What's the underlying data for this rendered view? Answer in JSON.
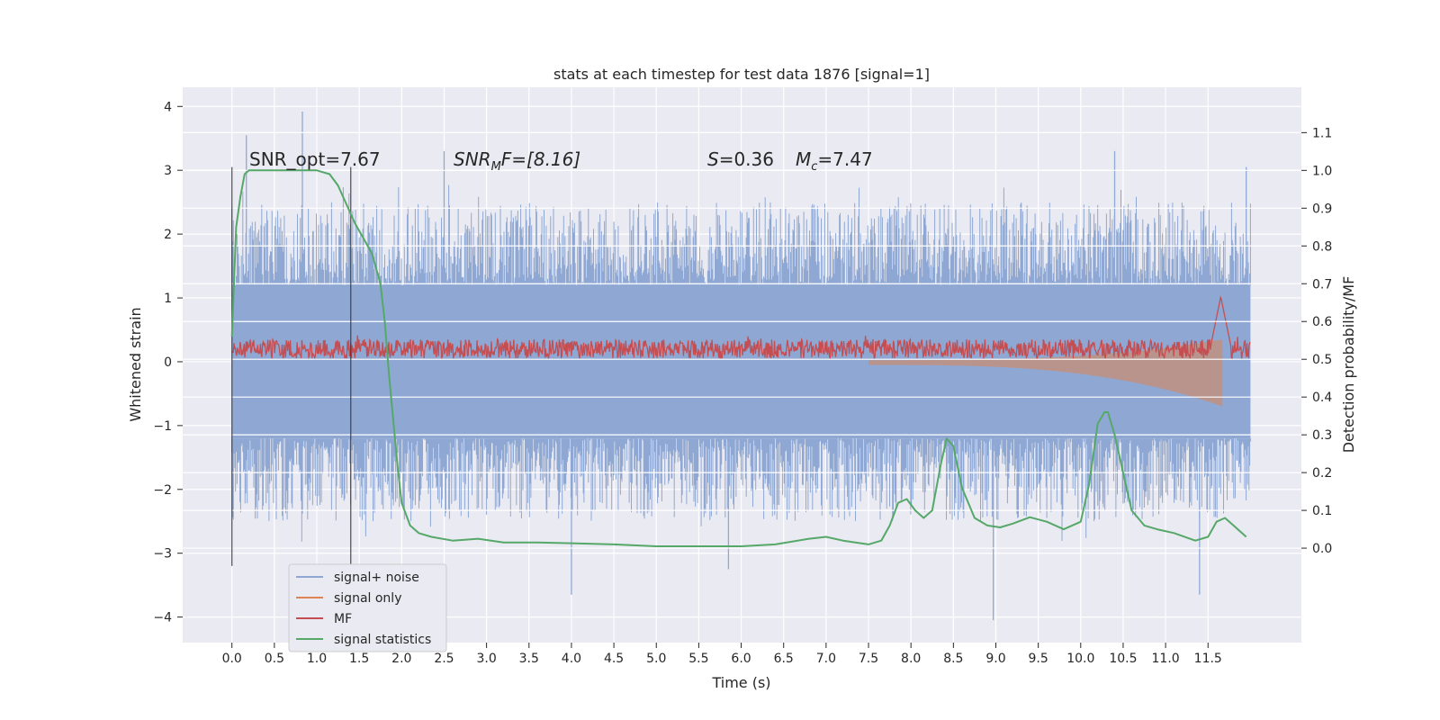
{
  "chart_data": {
    "type": "line",
    "title": "stats at each timestep for test data 1876 [signal=1]",
    "xlabel": "Time (s)",
    "ylabel": "Whitened strain",
    "ylabel_right": "Detection probability/MF",
    "xlim": [
      -0.58,
      12.6
    ],
    "ylim": [
      -4.4,
      4.3
    ],
    "ylim_right": [
      -0.25,
      1.22
    ],
    "x_ticks": [
      "0.0",
      "0.5",
      "1.0",
      "1.5",
      "2.0",
      "2.5",
      "3.0",
      "3.5",
      "4.0",
      "4.5",
      "5.0",
      "5.5",
      "6.0",
      "6.5",
      "7.0",
      "7.5",
      "8.0",
      "8.5",
      "9.0",
      "9.5",
      "10.0",
      "10.5",
      "11.0",
      "11.5"
    ],
    "y_ticks": [
      "4",
      "3",
      "2",
      "1",
      "0",
      "−1",
      "−2",
      "−3",
      "−4"
    ],
    "y_ticks_right": [
      "1.1",
      "1.0",
      "0.9",
      "0.8",
      "0.7",
      "0.6",
      "0.5",
      "0.4",
      "0.3",
      "0.2",
      "0.1",
      "0.0"
    ],
    "grid": true,
    "legend_position": "bottom-left",
    "vertical_lines": [
      0.0,
      1.4
    ],
    "annotations": {
      "snr_opt": "SNR_opt=7.67",
      "snr_mf_name": "SNR",
      "snr_mf_sub": "M",
      "snr_mf_rest": "F=[8.16]",
      "s_name": "S",
      "s_value": "=0.36",
      "mc_name": "M",
      "mc_sub": "c",
      "mc_value": "=7.47"
    },
    "series": [
      {
        "name": "signal+ noise",
        "color": "#8fa8d3",
        "axis": "left",
        "x_range": [
          0.0,
          12.0
        ],
        "core_band": 1.2,
        "typical_peak": 2.2,
        "outliers": [
          [
            0.17,
            3.55
          ],
          [
            0.83,
            3.92
          ],
          [
            4.0,
            -3.65
          ],
          [
            8.97,
            -4.05
          ],
          [
            10.4,
            3.3
          ],
          [
            11.4,
            -3.65
          ],
          [
            11.95,
            3.05
          ],
          [
            2.5,
            3.3
          ],
          [
            5.85,
            -3.25
          ]
        ]
      },
      {
        "name": "signal only",
        "color": "#dd8452",
        "axis": "left",
        "x_range": [
          7.5,
          11.67
        ],
        "amplitude_start": 0.05,
        "amplitude_end": 0.7
      },
      {
        "name": "MF",
        "color": "#c44e52",
        "axis": "left",
        "x_range": [
          0.0,
          12.0
        ],
        "baseline": 0.2,
        "spread": 0.15,
        "peak": {
          "x": 11.65,
          "y": 1.02
        }
      },
      {
        "name": "signal statistics",
        "color": "#55a868",
        "axis": "right",
        "x": [
          0.0,
          0.05,
          0.1,
          0.15,
          0.2,
          0.3,
          0.5,
          0.8,
          1.0,
          1.15,
          1.25,
          1.35,
          1.45,
          1.55,
          1.65,
          1.75,
          1.8,
          1.85,
          1.9,
          1.95,
          2.0,
          2.1,
          2.2,
          2.35,
          2.6,
          2.9,
          3.2,
          3.6,
          4.0,
          4.5,
          5.0,
          5.5,
          6.0,
          6.4,
          6.8,
          7.0,
          7.2,
          7.5,
          7.65,
          7.75,
          7.85,
          7.95,
          8.05,
          8.15,
          8.25,
          8.35,
          8.42,
          8.5,
          8.6,
          8.75,
          8.9,
          9.05,
          9.2,
          9.4,
          9.6,
          9.8,
          10.0,
          10.1,
          10.2,
          10.28,
          10.32,
          10.4,
          10.5,
          10.6,
          10.75,
          10.9,
          11.1,
          11.35,
          11.5,
          11.6,
          11.7,
          11.8,
          11.95
        ],
        "y": [
          0.56,
          0.85,
          0.93,
          0.99,
          1.0,
          1.0,
          1.0,
          1.0,
          1.0,
          0.99,
          0.96,
          0.91,
          0.86,
          0.82,
          0.78,
          0.7,
          0.6,
          0.46,
          0.34,
          0.22,
          0.12,
          0.06,
          0.04,
          0.03,
          0.02,
          0.025,
          0.015,
          0.015,
          0.013,
          0.01,
          0.005,
          0.005,
          0.005,
          0.01,
          0.025,
          0.03,
          0.02,
          0.01,
          0.02,
          0.06,
          0.12,
          0.13,
          0.1,
          0.08,
          0.1,
          0.22,
          0.29,
          0.27,
          0.16,
          0.08,
          0.06,
          0.055,
          0.065,
          0.082,
          0.07,
          0.05,
          0.07,
          0.17,
          0.33,
          0.36,
          0.36,
          0.3,
          0.2,
          0.1,
          0.06,
          0.05,
          0.04,
          0.02,
          0.03,
          0.07,
          0.08,
          0.06,
          0.03
        ]
      }
    ]
  }
}
